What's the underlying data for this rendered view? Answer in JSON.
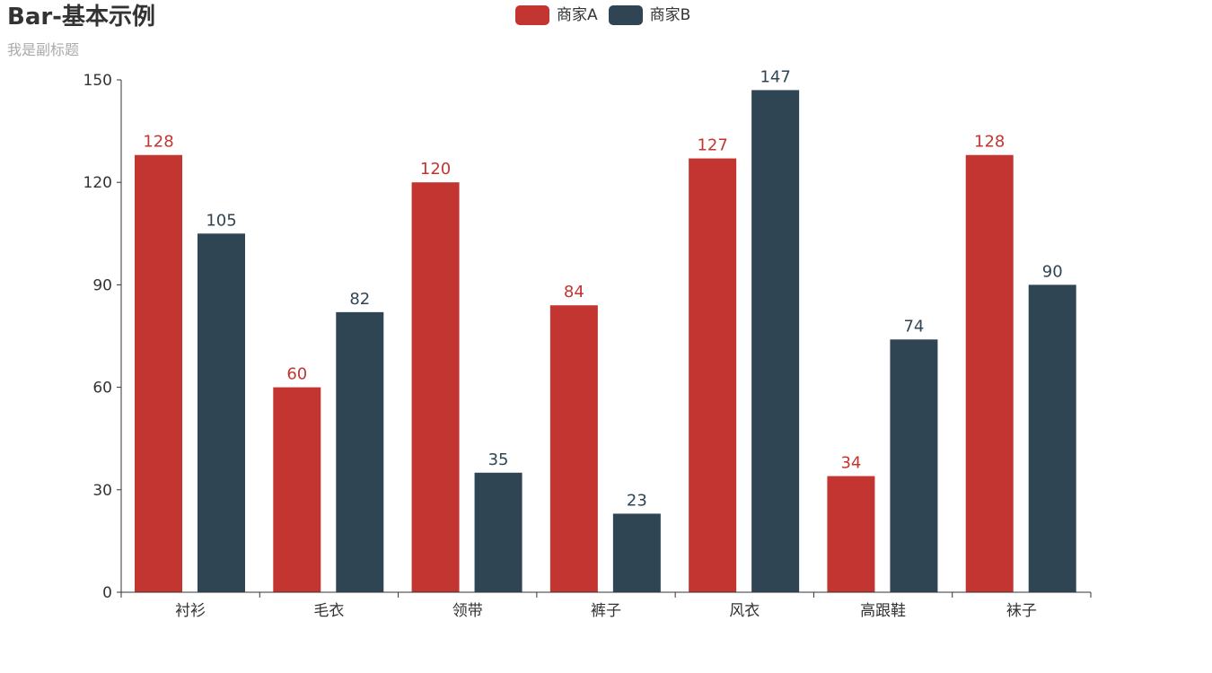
{
  "title": "Bar-基本示例",
  "subtitle": "我是副标题",
  "legend": [
    {
      "name": "商家A",
      "color": "#c23531"
    },
    {
      "name": "商家B",
      "color": "#2f4554"
    }
  ],
  "chart_data": {
    "type": "bar",
    "categories": [
      "衬衫",
      "毛衣",
      "领带",
      "裤子",
      "风衣",
      "高跟鞋",
      "袜子"
    ],
    "series": [
      {
        "name": "商家A",
        "color": "#c23531",
        "values": [
          128,
          60,
          120,
          84,
          127,
          34,
          128
        ]
      },
      {
        "name": "商家B",
        "color": "#2f4554",
        "values": [
          105,
          82,
          35,
          23,
          147,
          74,
          90
        ]
      }
    ],
    "yticks": [
      0,
      30,
      60,
      90,
      120,
      150
    ],
    "ylim": [
      0,
      150
    ],
    "legend_position": "top-center",
    "grid": false
  }
}
